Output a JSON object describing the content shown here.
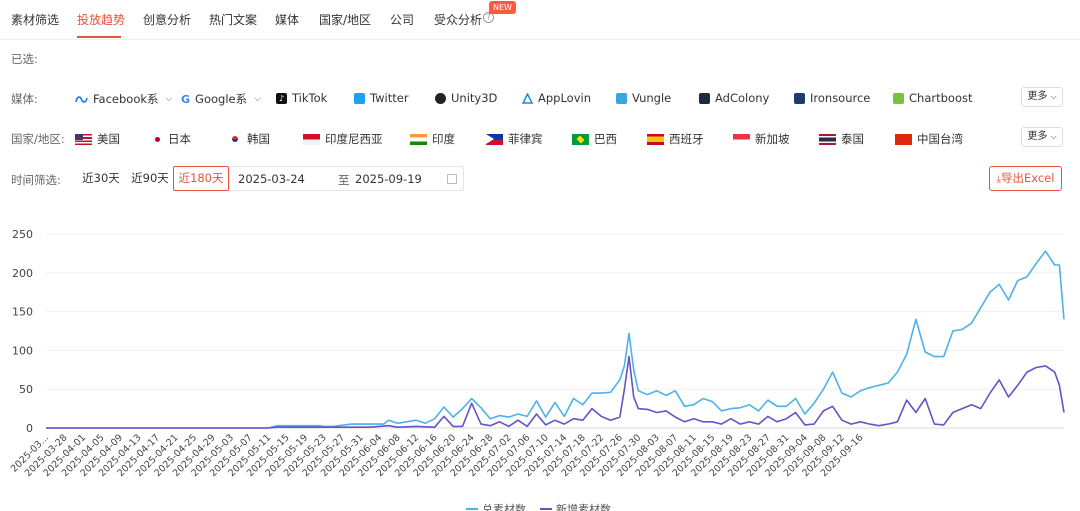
{
  "tabs": [
    {
      "label": "素材筛选",
      "active": false
    },
    {
      "label": "投放趋势",
      "active": true
    },
    {
      "label": "创意分析",
      "active": false
    },
    {
      "label": "热门文案",
      "active": false
    },
    {
      "label": "媒体",
      "active": false
    },
    {
      "label": "国家/地区",
      "active": false
    },
    {
      "label": "公司",
      "active": false
    },
    {
      "label": "受众分析",
      "active": false
    }
  ],
  "new_badge": "NEW",
  "selected_label": "已选:",
  "media": {
    "label": "媒体:",
    "items": [
      {
        "label": "Facebook系",
        "icon": "meta-icon",
        "color": "#1877f2",
        "dropdown": true
      },
      {
        "label": "Google系",
        "icon": "google-icon",
        "color": "#4285f4",
        "dropdown": true
      },
      {
        "label": "TikTok",
        "icon": "tiktok-icon",
        "color": "#111111",
        "dropdown": false
      },
      {
        "label": "Twitter",
        "icon": "twitter-icon",
        "color": "#1da1f2",
        "dropdown": false
      },
      {
        "label": "Unity3D",
        "icon": "unity-icon",
        "color": "#222222",
        "dropdown": false
      },
      {
        "label": "AppLovin",
        "icon": "applovin-icon",
        "color": "#1a8cd8",
        "dropdown": false
      },
      {
        "label": "Vungle",
        "icon": "vungle-icon",
        "color": "#3aa7e0",
        "dropdown": false
      },
      {
        "label": "AdColony",
        "icon": "adcolony-icon",
        "color": "#1f2a44",
        "dropdown": false
      },
      {
        "label": "Ironsource",
        "icon": "ironsource-icon",
        "color": "#1e3a6e",
        "dropdown": false
      },
      {
        "label": "Chartboost",
        "icon": "chartboost-icon",
        "color": "#7ac142",
        "dropdown": false
      }
    ],
    "more": "更多"
  },
  "countries": {
    "label": "国家/地区:",
    "items": [
      {
        "label": "美国",
        "icon": "flag-us-icon"
      },
      {
        "label": "日本",
        "icon": "flag-jp-icon"
      },
      {
        "label": "韩国",
        "icon": "flag-kr-icon"
      },
      {
        "label": "印度尼西亚",
        "icon": "flag-id-icon"
      },
      {
        "label": "印度",
        "icon": "flag-in-icon"
      },
      {
        "label": "菲律宾",
        "icon": "flag-ph-icon"
      },
      {
        "label": "巴西",
        "icon": "flag-br-icon"
      },
      {
        "label": "西班牙",
        "icon": "flag-es-icon"
      },
      {
        "label": "新加坡",
        "icon": "flag-sg-icon"
      },
      {
        "label": "泰国",
        "icon": "flag-th-icon"
      },
      {
        "label": "中国台湾",
        "icon": "flag-tw-icon"
      }
    ],
    "more": "更多"
  },
  "time_filter": {
    "label": "时间筛选:",
    "ranges": [
      {
        "label": "近30天",
        "active": false
      },
      {
        "label": "近90天",
        "active": false
      },
      {
        "label": "近180天",
        "active": true
      }
    ],
    "start_date": "2025-03-24",
    "separator": "至",
    "end_date": "2025-09-19"
  },
  "export_label": "导出Excel",
  "accent_color": "#e8543a",
  "chart_data": {
    "type": "line",
    "yticks": [
      0,
      50,
      100,
      150,
      200,
      250
    ],
    "ylim": [
      0,
      250
    ],
    "x_first_label": "2025-03...",
    "xtick_labels": [
      "2025-03-28",
      "2025-04-01",
      "2025-04-05",
      "2025-04-09",
      "2025-04-13",
      "2025-04-17",
      "2025-04-21",
      "2025-04-25",
      "2025-04-29",
      "2025-05-03",
      "2025-05-07",
      "2025-05-11",
      "2025-05-15",
      "2025-05-19",
      "2025-05-23",
      "2025-05-27",
      "2025-05-31",
      "2025-06-04",
      "2025-06-08",
      "2025-06-12",
      "2025-06-16",
      "2025-06-20",
      "2025-06-24",
      "2025-06-28",
      "2025-07-02",
      "2025-07-06",
      "2025-07-10",
      "2025-07-14",
      "2025-07-18",
      "2025-07-22",
      "2025-07-26",
      "2025-07-30",
      "2025-08-03",
      "2025-08-07",
      "2025-08-11",
      "2025-08-15",
      "2025-08-19",
      "2025-08-23",
      "2025-08-27",
      "2025-08-31",
      "2025-09-04",
      "2025-09-08",
      "2025-09-12",
      "2025-09-16"
    ],
    "grid": true,
    "legend_position": "bottom",
    "series": [
      {
        "name": "总素材数",
        "color": "#4db3e6",
        "points": [
          [
            0,
            0
          ],
          [
            48,
            0
          ],
          [
            50,
            3
          ],
          [
            59,
            3
          ],
          [
            60,
            2
          ],
          [
            62,
            2
          ],
          [
            66,
            5
          ],
          [
            73,
            5
          ],
          [
            74,
            10
          ],
          [
            76,
            6
          ],
          [
            80,
            10
          ],
          [
            82,
            6
          ],
          [
            84,
            12
          ],
          [
            86,
            27
          ],
          [
            88,
            14
          ],
          [
            90,
            25
          ],
          [
            92,
            38
          ],
          [
            94,
            26
          ],
          [
            96,
            12
          ],
          [
            98,
            16
          ],
          [
            100,
            14
          ],
          [
            102,
            18
          ],
          [
            104,
            15
          ],
          [
            106,
            35
          ],
          [
            108,
            14
          ],
          [
            110,
            33
          ],
          [
            112,
            15
          ],
          [
            114,
            38
          ],
          [
            116,
            30
          ],
          [
            118,
            45
          ],
          [
            120,
            45
          ],
          [
            122,
            46
          ],
          [
            124,
            62
          ],
          [
            125,
            80
          ],
          [
            126,
            122
          ],
          [
            127,
            75
          ],
          [
            128,
            48
          ],
          [
            130,
            43
          ],
          [
            132,
            48
          ],
          [
            134,
            42
          ],
          [
            136,
            48
          ],
          [
            138,
            28
          ],
          [
            140,
            30
          ],
          [
            142,
            38
          ],
          [
            144,
            34
          ],
          [
            146,
            22
          ],
          [
            148,
            25
          ],
          [
            150,
            26
          ],
          [
            152,
            30
          ],
          [
            154,
            22
          ],
          [
            156,
            36
          ],
          [
            158,
            28
          ],
          [
            160,
            28
          ],
          [
            162,
            38
          ],
          [
            164,
            18
          ],
          [
            166,
            32
          ],
          [
            168,
            50
          ],
          [
            170,
            72
          ],
          [
            172,
            45
          ],
          [
            174,
            40
          ],
          [
            176,
            48
          ],
          [
            178,
            52
          ],
          [
            180,
            55
          ],
          [
            182,
            58
          ],
          [
            184,
            72
          ],
          [
            186,
            95
          ],
          [
            188,
            140
          ],
          [
            190,
            98
          ],
          [
            192,
            92
          ],
          [
            194,
            92
          ],
          [
            196,
            125
          ],
          [
            198,
            127
          ],
          [
            200,
            135
          ],
          [
            202,
            155
          ],
          [
            204,
            175
          ],
          [
            206,
            185
          ],
          [
            208,
            165
          ],
          [
            210,
            190
          ],
          [
            212,
            195
          ],
          [
            214,
            212
          ],
          [
            216,
            228
          ],
          [
            218,
            210
          ],
          [
            219,
            210
          ],
          [
            220,
            140
          ]
        ]
      },
      {
        "name": "新增素材数",
        "color": "#6652c9",
        "points": [
          [
            0,
            0
          ],
          [
            48,
            0
          ],
          [
            50,
            1
          ],
          [
            70,
            1
          ],
          [
            74,
            3
          ],
          [
            76,
            1
          ],
          [
            80,
            2
          ],
          [
            84,
            1
          ],
          [
            86,
            15
          ],
          [
            88,
            2
          ],
          [
            90,
            2
          ],
          [
            92,
            32
          ],
          [
            94,
            5
          ],
          [
            96,
            3
          ],
          [
            98,
            8
          ],
          [
            100,
            2
          ],
          [
            102,
            10
          ],
          [
            104,
            2
          ],
          [
            106,
            18
          ],
          [
            108,
            4
          ],
          [
            110,
            10
          ],
          [
            112,
            5
          ],
          [
            114,
            12
          ],
          [
            116,
            10
          ],
          [
            118,
            25
          ],
          [
            120,
            15
          ],
          [
            122,
            10
          ],
          [
            124,
            14
          ],
          [
            125,
            50
          ],
          [
            126,
            92
          ],
          [
            127,
            40
          ],
          [
            128,
            25
          ],
          [
            130,
            24
          ],
          [
            132,
            20
          ],
          [
            134,
            22
          ],
          [
            136,
            14
          ],
          [
            138,
            8
          ],
          [
            140,
            12
          ],
          [
            142,
            8
          ],
          [
            144,
            8
          ],
          [
            146,
            5
          ],
          [
            148,
            12
          ],
          [
            150,
            5
          ],
          [
            152,
            8
          ],
          [
            154,
            5
          ],
          [
            156,
            15
          ],
          [
            158,
            8
          ],
          [
            160,
            12
          ],
          [
            162,
            20
          ],
          [
            164,
            4
          ],
          [
            166,
            5
          ],
          [
            168,
            22
          ],
          [
            170,
            28
          ],
          [
            172,
            10
          ],
          [
            174,
            5
          ],
          [
            176,
            8
          ],
          [
            178,
            5
          ],
          [
            180,
            3
          ],
          [
            182,
            5
          ],
          [
            184,
            8
          ],
          [
            186,
            36
          ],
          [
            188,
            20
          ],
          [
            190,
            38
          ],
          [
            192,
            5
          ],
          [
            194,
            4
          ],
          [
            196,
            20
          ],
          [
            198,
            25
          ],
          [
            200,
            30
          ],
          [
            202,
            25
          ],
          [
            204,
            45
          ],
          [
            206,
            62
          ],
          [
            208,
            40
          ],
          [
            210,
            55
          ],
          [
            212,
            72
          ],
          [
            214,
            78
          ],
          [
            216,
            80
          ],
          [
            218,
            72
          ],
          [
            219,
            55
          ],
          [
            220,
            20
          ]
        ]
      }
    ]
  }
}
